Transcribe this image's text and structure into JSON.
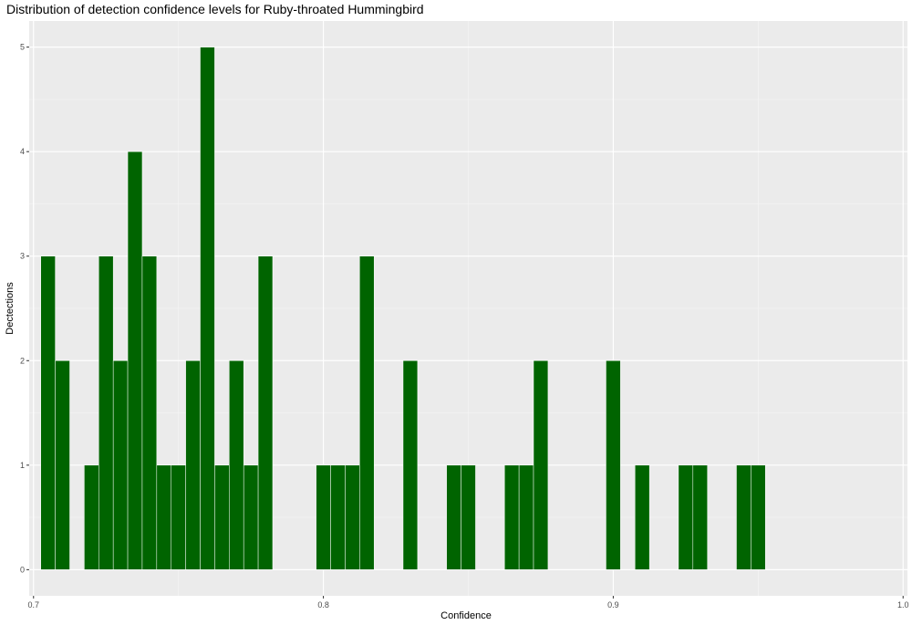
{
  "chart_data": {
    "type": "bar",
    "title": "Distribution of detection confidence levels for Ruby-throated Hummingbird",
    "xlabel": "Confidence",
    "ylabel": "Dectections",
    "xlim": [
      0.6985,
      1.0015
    ],
    "ylim": [
      -0.25,
      5.25
    ],
    "x_ticks": [
      0.7,
      0.8,
      0.9,
      1.0
    ],
    "x_tick_labels": [
      "0.7",
      "0.8",
      "0.9",
      "1.0"
    ],
    "y_ticks": [
      0,
      1,
      2,
      3,
      4,
      5
    ],
    "y_tick_labels": [
      "0",
      "1",
      "2",
      "3",
      "4",
      "5"
    ],
    "bin_width": 0.005,
    "bins": [
      {
        "x": 0.705,
        "count": 3
      },
      {
        "x": 0.71,
        "count": 2
      },
      {
        "x": 0.72,
        "count": 1
      },
      {
        "x": 0.725,
        "count": 3
      },
      {
        "x": 0.73,
        "count": 2
      },
      {
        "x": 0.735,
        "count": 4
      },
      {
        "x": 0.74,
        "count": 3
      },
      {
        "x": 0.745,
        "count": 1
      },
      {
        "x": 0.75,
        "count": 1
      },
      {
        "x": 0.755,
        "count": 2
      },
      {
        "x": 0.76,
        "count": 5
      },
      {
        "x": 0.765,
        "count": 1
      },
      {
        "x": 0.77,
        "count": 2
      },
      {
        "x": 0.775,
        "count": 1
      },
      {
        "x": 0.78,
        "count": 3
      },
      {
        "x": 0.8,
        "count": 1
      },
      {
        "x": 0.805,
        "count": 1
      },
      {
        "x": 0.81,
        "count": 1
      },
      {
        "x": 0.815,
        "count": 3
      },
      {
        "x": 0.83,
        "count": 2
      },
      {
        "x": 0.845,
        "count": 1
      },
      {
        "x": 0.85,
        "count": 1
      },
      {
        "x": 0.865,
        "count": 1
      },
      {
        "x": 0.87,
        "count": 1
      },
      {
        "x": 0.875,
        "count": 2
      },
      {
        "x": 0.9,
        "count": 2
      },
      {
        "x": 0.91,
        "count": 1
      },
      {
        "x": 0.925,
        "count": 1
      },
      {
        "x": 0.93,
        "count": 1
      },
      {
        "x": 0.945,
        "count": 1
      },
      {
        "x": 0.95,
        "count": 1
      }
    ],
    "grid": true,
    "legend": "none",
    "colors": {
      "bar_fill": "#006400",
      "bar_stroke": "#ffffff",
      "panel_background": "#ebebeb",
      "grid_major": "#ffffff",
      "grid_minor": "#f5f5f5"
    }
  }
}
